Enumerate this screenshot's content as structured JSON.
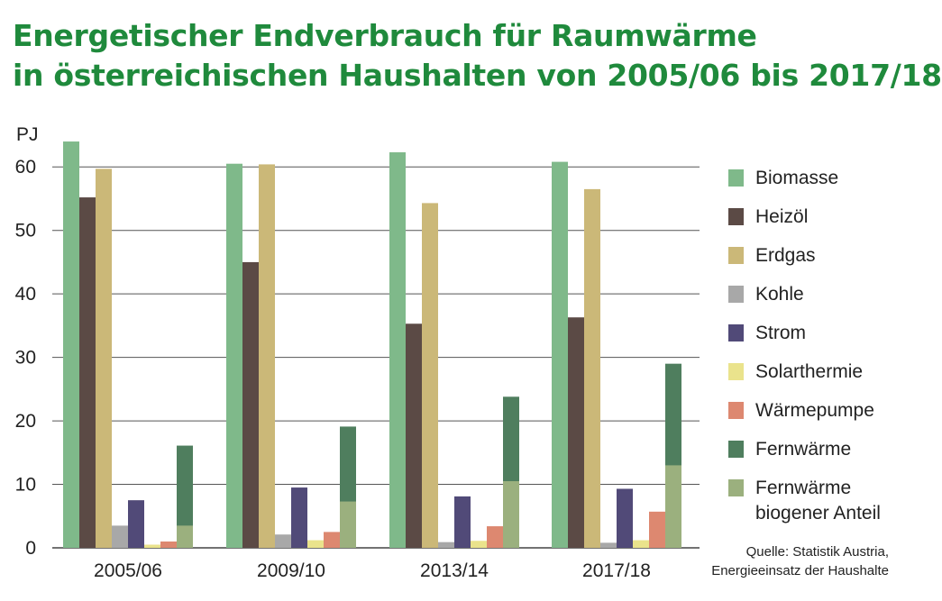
{
  "title": {
    "line1": "Energetischer Endverbrauch für Raumwärme",
    "line2": "in österreichischen Haushalten von 2005/06 bis 2017/18"
  },
  "source": {
    "line1": "Quelle: Statistik Austria,",
    "line2": "Energieeinsatz der Haushalte"
  },
  "chart_data": {
    "type": "bar",
    "ylabel": "PJ",
    "ylim": [
      0,
      65
    ],
    "yticks": [
      0,
      10,
      20,
      30,
      40,
      50,
      60
    ],
    "grid": true,
    "legend_position": "right",
    "categories": [
      "2005/06",
      "2009/10",
      "2013/14",
      "2017/18"
    ],
    "series": [
      {
        "name": "Biomasse",
        "color": "#7fb98a",
        "values": [
          64,
          60.5,
          62.3,
          60.8
        ]
      },
      {
        "name": "Heizöl",
        "color": "#5b4a45",
        "values": [
          55.2,
          45,
          35.3,
          36.3
        ]
      },
      {
        "name": "Erdgas",
        "color": "#cbb878",
        "values": [
          59.7,
          60.4,
          54.3,
          56.5
        ]
      },
      {
        "name": "Kohle",
        "color": "#a8a8a8",
        "values": [
          3.5,
          2.1,
          0.9,
          0.8
        ]
      },
      {
        "name": "Strom",
        "color": "#514a78",
        "values": [
          7.5,
          9.5,
          8.1,
          9.3
        ]
      },
      {
        "name": "Solarthermie",
        "color": "#eae38c",
        "values": [
          0.5,
          1.2,
          1.1,
          1.2
        ]
      },
      {
        "name": "Wärmepumpe",
        "color": "#dd8870",
        "values": [
          1.0,
          2.5,
          3.4,
          5.7
        ]
      },
      {
        "name": "Fernwärme",
        "color": "#4f7e5e",
        "values": [
          16.1,
          19.1,
          23.8,
          29
        ]
      },
      {
        "name": "Fernwärme biogener Anteil",
        "color": "#9bb07e",
        "values": [
          3.5,
          7.3,
          10.5,
          13
        ]
      }
    ],
    "stacked_pairs": [
      [
        "Fernwärme biogener Anteil",
        "Fernwärme"
      ]
    ]
  }
}
